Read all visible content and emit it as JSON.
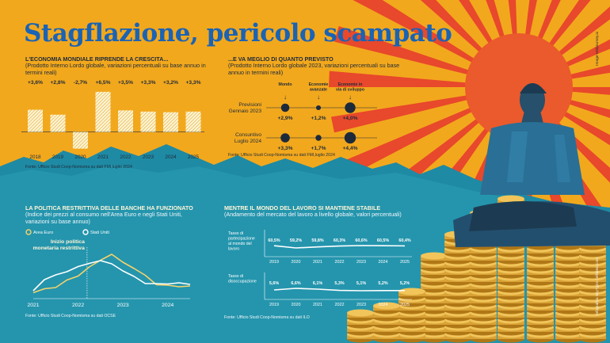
{
  "title": "Stagflazione, pericolo scampato",
  "credits": {
    "illustration": "Image Midjourney.ai",
    "infographic": "Infografica SkyTg24 / ellidiesi.com"
  },
  "colors": {
    "orange": "#f2a81d",
    "teal": "#1f8aa3",
    "title_blue": "#1a63b5",
    "dark": "#1d2a3a",
    "cream": "#fff5d8",
    "red": "#e8482b"
  },
  "panel_gdp": {
    "heading": "L'ECONOMIA MONDIALE  RIPRENDE LA CRESCITA...",
    "subtitle": "(Prodotto Interno Lordo globale, variazioni percentuali su base annuo in termini reali)",
    "source": "Fonte: Ufficio Studi Coop-Nomisma su dati FMI,luglio 2024"
  },
  "panel_forecast": {
    "heading": "...E VA MEGLIO DI QUANTO PREVISTO",
    "subtitle": "(Prodotto Interno Lordo globale 2023, variazioni percentuali su base annuo in termini reali)",
    "source": "Fonte: Ufficio Studi Coop-Nomisma su dati FMI,luglio 2024"
  },
  "panel_inflation": {
    "heading": "LA POLITICA RESTRITTIVA DELLE BANCHE HA FUNZIONATO",
    "subtitle": "(Indice dei prezzi al consumo nell'Area Euro e negli Stati Uniti, variazioni su base annuo)",
    "source": "Fonte: Ufficio Studi Coop-Nomisma su dati OCSE",
    "annotation_line1": "Inizio politica",
    "annotation_line2": "monetaria restrittiva"
  },
  "panel_labour": {
    "heading": "MENTRE IL MONDO DEL LAVORO SI MANTIENE STABILE",
    "subtitle": "(Andamento del mercato del lavoro a livello globale, valori percentuali)",
    "source": "Fonte: Ufficio Studi Coop-Nomisma su dati ILO"
  },
  "chart_data": [
    {
      "type": "bar",
      "categories": [
        "2018",
        "2019",
        "2020",
        "2021",
        "2022",
        "2023",
        "2024",
        "2025"
      ],
      "values": [
        3.6,
        2.8,
        -2.7,
        6.5,
        3.5,
        3.3,
        3.2,
        3.3
      ],
      "data_labels": [
        "+3,6%",
        "+2,8%",
        "-2,7%",
        "+6,5%",
        "+3,5%",
        "+3,3%",
        "+3,2%",
        "+3,3%"
      ],
      "ylim": [
        -3,
        7
      ]
    },
    {
      "type": "table",
      "columns": [
        "Mondo",
        "Economie avanzate",
        "Economie in via di sviluppo"
      ],
      "rows": [
        {
          "label": "Previsioni Gennaio 2023",
          "values": [
            2.9,
            1.2,
            4.0
          ],
          "data_labels": [
            "+2,9%",
            "+1,2%",
            "+4,0%"
          ]
        },
        {
          "label": "Consuntivo Luglio 2024",
          "values": [
            3.3,
            1.7,
            4.4
          ],
          "data_labels": [
            "+3,3%",
            "+1,7%",
            "+4,4%"
          ]
        }
      ]
    },
    {
      "type": "line",
      "x": [
        2021.0,
        2021.25,
        2021.5,
        2021.75,
        2022.0,
        2022.25,
        2022.5,
        2022.75,
        2023.0,
        2023.25,
        2023.5,
        2023.75,
        2024.0,
        2024.25,
        2024.5
      ],
      "x_ticks": [
        "2021",
        "2022",
        "2023",
        "2024"
      ],
      "series": [
        {
          "name": "Area Euro",
          "color": "#f6d36b",
          "values": [
            0.9,
            1.9,
            2.2,
            4.1,
            5.1,
            7.4,
            9.1,
            10.6,
            8.6,
            7.0,
            5.3,
            2.9,
            2.8,
            2.4,
            2.6
          ]
        },
        {
          "name": "Stati Uniti",
          "color": "#ffffff",
          "values": [
            1.4,
            4.2,
            5.4,
            6.2,
            7.5,
            8.3,
            9.0,
            8.2,
            6.4,
            5.0,
            3.2,
            3.2,
            3.1,
            3.4,
            3.0
          ]
        }
      ],
      "ylim": [
        0,
        12
      ]
    },
    {
      "type": "line",
      "x": [
        "2019",
        "2020",
        "2021",
        "2022",
        "2023",
        "2024",
        "2025"
      ],
      "series": [
        {
          "name": "Tasso di partecipazione al mondo del lavoro",
          "values": [
            60.5,
            59.2,
            59.8,
            60.3,
            60.6,
            60.5,
            60.4
          ],
          "data_labels": [
            "60,5%",
            "59,2%",
            "59,8%",
            "60,3%",
            "60,6%",
            "60,5%",
            "60,4%"
          ]
        },
        {
          "name": "Tasso di disoccupazione",
          "values": [
            5.6,
            6.6,
            6.1,
            5.3,
            5.1,
            5.2,
            5.2
          ],
          "data_labels": [
            "5,6%",
            "6,6%",
            "6,1%",
            "5,3%",
            "5,1%",
            "5,2%",
            "5,2%"
          ]
        }
      ]
    }
  ]
}
